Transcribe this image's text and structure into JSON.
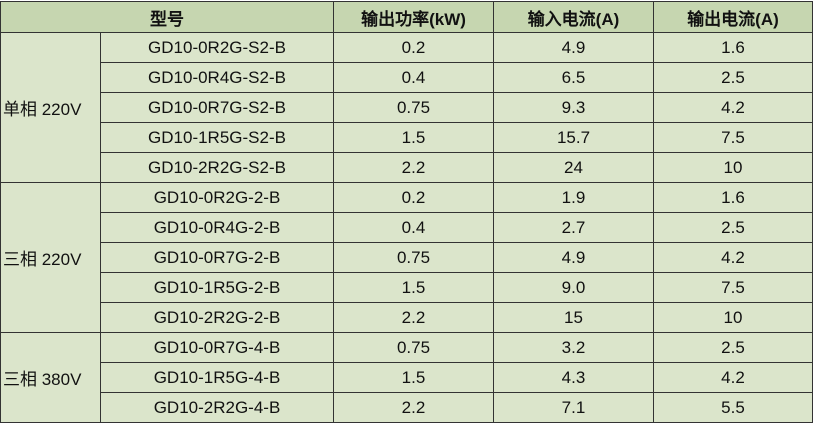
{
  "header": [
    "型号",
    "输出功率(kW)",
    "输入电流(A)",
    "输出电流(A)"
  ],
  "groups": [
    {
      "label": "单相 220V",
      "rows": [
        [
          "GD10-0R2G-S2-B",
          "0.2",
          "4.9",
          "1.6"
        ],
        [
          "GD10-0R4G-S2-B",
          "0.4",
          "6.5",
          "2.5"
        ],
        [
          "GD10-0R7G-S2-B",
          "0.75",
          "9.3",
          "4.2"
        ],
        [
          "GD10-1R5G-S2-B",
          "1.5",
          "15.7",
          "7.5"
        ],
        [
          "GD10-2R2G-S2-B",
          "2.2",
          "24",
          "10"
        ]
      ]
    },
    {
      "label": "三相 220V",
      "rows": [
        [
          "GD10-0R2G-2-B",
          "0.2",
          "1.9",
          "1.6"
        ],
        [
          "GD10-0R4G-2-B",
          "0.4",
          "2.7",
          "2.5"
        ],
        [
          "GD10-0R7G-2-B",
          "0.75",
          "4.9",
          "4.2"
        ],
        [
          "GD10-1R5G-2-B",
          "1.5",
          "9.0",
          "7.5"
        ],
        [
          "GD10-2R2G-2-B",
          "2.2",
          "15",
          "10"
        ]
      ]
    },
    {
      "label": "三相 380V",
      "rows": [
        [
          "GD10-0R7G-4-B",
          "0.75",
          "3.2",
          "2.5"
        ],
        [
          "GD10-1R5G-4-B",
          "1.5",
          "4.3",
          "4.2"
        ],
        [
          "GD10-2R2G-4-B",
          "2.2",
          "7.1",
          "5.5"
        ]
      ]
    }
  ]
}
